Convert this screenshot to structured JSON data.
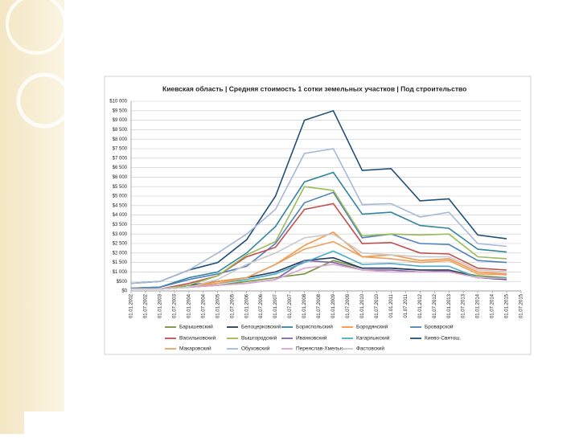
{
  "chart_data": {
    "type": "line",
    "title": "Киевская область | Средняя стоимость 1 сотки земельных участков | Под строительство",
    "x": [
      2002,
      2003,
      2004,
      2005,
      2006,
      2007,
      2008,
      2009,
      2010,
      2011,
      2012,
      2013,
      2014,
      2015
    ],
    "xlim": [
      2002,
      2015.5
    ],
    "xticks": [
      {
        "value": 2002,
        "label": "01.01.2002"
      },
      {
        "value": 2002.5,
        "label": "01.07.2002"
      },
      {
        "value": 2003,
        "label": "01.01.2003"
      },
      {
        "value": 2003.5,
        "label": "01.07.2003"
      },
      {
        "value": 2004,
        "label": "01.01.2004"
      },
      {
        "value": 2004.5,
        "label": "01.07.2004"
      },
      {
        "value": 2005,
        "label": "01.01.2005"
      },
      {
        "value": 2005.5,
        "label": "01.07.2005"
      },
      {
        "value": 2006,
        "label": "01.01.2006"
      },
      {
        "value": 2006.5,
        "label": "01.07.2006"
      },
      {
        "value": 2007,
        "label": "01.01.2007"
      },
      {
        "value": 2007.5,
        "label": "01.07.2007"
      },
      {
        "value": 2008,
        "label": "01.01.2008"
      },
      {
        "value": 2008.5,
        "label": "01.07.2008"
      },
      {
        "value": 2009,
        "label": "01.01.2009"
      },
      {
        "value": 2009.5,
        "label": "01.07.2009"
      },
      {
        "value": 2010,
        "label": "01.01.2010"
      },
      {
        "value": 2010.5,
        "label": "01.07.2010"
      },
      {
        "value": 2011,
        "label": "01.01.2011"
      },
      {
        "value": 2011.5,
        "label": "01.07.2011"
      },
      {
        "value": 2012,
        "label": "01.01.2012"
      },
      {
        "value": 2012.5,
        "label": "01.07.2012"
      },
      {
        "value": 2013,
        "label": "01.01.2013"
      },
      {
        "value": 2013.5,
        "label": "01.07.2013"
      },
      {
        "value": 2014,
        "label": "01.01.2014"
      },
      {
        "value": 2014.5,
        "label": "01.07.2014"
      },
      {
        "value": 2015,
        "label": "01.01.2015"
      },
      {
        "value": 2015.5,
        "label": "01.07.2015"
      }
    ],
    "ylim": [
      0,
      10000
    ],
    "yticks": [
      {
        "value": 0,
        "label": "$0"
      },
      {
        "value": 500,
        "label": "$500"
      },
      {
        "value": 1000,
        "label": "$1 000"
      },
      {
        "value": 1500,
        "label": "$1 500"
      },
      {
        "value": 2000,
        "label": "$2 000"
      },
      {
        "value": 2500,
        "label": "$2 500"
      },
      {
        "value": 3000,
        "label": "$3 000"
      },
      {
        "value": 3500,
        "label": "$3 500"
      },
      {
        "value": 4000,
        "label": "$4 000"
      },
      {
        "value": 4500,
        "label": "$4 500"
      },
      {
        "value": 5000,
        "label": "$5 000"
      },
      {
        "value": 5500,
        "label": "$5 500"
      },
      {
        "value": 6000,
        "label": "$6 000"
      },
      {
        "value": 6500,
        "label": "$6 500"
      },
      {
        "value": 7000,
        "label": "$7 000"
      },
      {
        "value": 7500,
        "label": "$7 500"
      },
      {
        "value": 8000,
        "label": "$8 000"
      },
      {
        "value": 8500,
        "label": "$8 500"
      },
      {
        "value": 9000,
        "label": "$9 000"
      },
      {
        "value": 9500,
        "label": "$9 500"
      },
      {
        "value": 10000,
        "label": "$10 000"
      }
    ],
    "grid": true,
    "series": [
      {
        "name": "Барышевский",
        "color": "#77933c",
        "values": [
          100,
          100,
          200,
          300,
          500,
          700,
          900,
          1600,
          1200,
          1200,
          1100,
          1100,
          800,
          700
        ]
      },
      {
        "name": "Белоцерковский",
        "color": "#1f3a5f",
        "values": [
          100,
          100,
          300,
          500,
          700,
          1000,
          1600,
          1750,
          1200,
          1200,
          1100,
          1100,
          700,
          600
        ]
      },
      {
        "name": "Бориспольский",
        "color": "#31859c",
        "values": [
          150,
          200,
          700,
          1000,
          2000,
          3400,
          5750,
          6250,
          4050,
          4150,
          3450,
          3300,
          2200,
          2050
        ]
      },
      {
        "name": "Бородянский",
        "color": "#f79646",
        "values": [
          100,
          100,
          200,
          500,
          700,
          1400,
          2400,
          3100,
          1800,
          1900,
          1600,
          1700,
          1000,
          900
        ]
      },
      {
        "name": "Броварской",
        "color": "#4f81bd",
        "values": [
          150,
          200,
          600,
          900,
          1300,
          2500,
          4650,
          5200,
          2800,
          3000,
          2500,
          2450,
          1600,
          1500
        ]
      },
      {
        "name": "Васильковский",
        "color": "#c0504d",
        "values": [
          100,
          100,
          400,
          800,
          1800,
          2300,
          4300,
          4600,
          2500,
          2550,
          2000,
          1950,
          1200,
          1100
        ]
      },
      {
        "name": "Вышгородский",
        "color": "#9bbb59",
        "values": [
          100,
          100,
          300,
          800,
          1900,
          2600,
          5500,
          5300,
          2900,
          3000,
          2950,
          3000,
          1800,
          1700
        ]
      },
      {
        "name": "Иванковский",
        "color": "#8064a2",
        "values": [
          100,
          100,
          200,
          300,
          400,
          600,
          1600,
          1500,
          1100,
          1100,
          1000,
          1050,
          700,
          650
        ]
      },
      {
        "name": "Кагарлыкский",
        "color": "#4bacc6",
        "values": [
          100,
          100,
          200,
          400,
          600,
          900,
          1500,
          2100,
          1400,
          1450,
          1300,
          1300,
          700,
          700
        ]
      },
      {
        "name": "Киево-Святош.",
        "color": "#1f4e79",
        "values": [
          400,
          500,
          1100,
          1500,
          2700,
          5000,
          9000,
          9500,
          6350,
          6450,
          4750,
          4850,
          2950,
          2750
        ]
      },
      {
        "name": "Макаровский",
        "color": "#e9a15f",
        "values": [
          100,
          100,
          200,
          400,
          700,
          1400,
          2200,
          2600,
          1800,
          1700,
          1500,
          1600,
          900,
          850
        ]
      },
      {
        "name": "Обуховский",
        "color": "#a6b8d6",
        "values": [
          400,
          500,
          1100,
          2000,
          3000,
          4300,
          7250,
          7500,
          4550,
          4600,
          3900,
          4150,
          2500,
          2350
        ]
      },
      {
        "name": "Переяслав-Хмельн.",
        "color": "#d9a6cf",
        "values": [
          100,
          100,
          200,
          300,
          400,
          600,
          1200,
          1400,
          1100,
          1000,
          1000,
          1000,
          700,
          650
        ]
      },
      {
        "name": "Фастовский",
        "color": "#c8c8c8",
        "values": [
          100,
          100,
          200,
          600,
          1400,
          2000,
          2800,
          3000,
          2000,
          1900,
          1800,
          1800,
          1100,
          1000
        ]
      }
    ]
  }
}
